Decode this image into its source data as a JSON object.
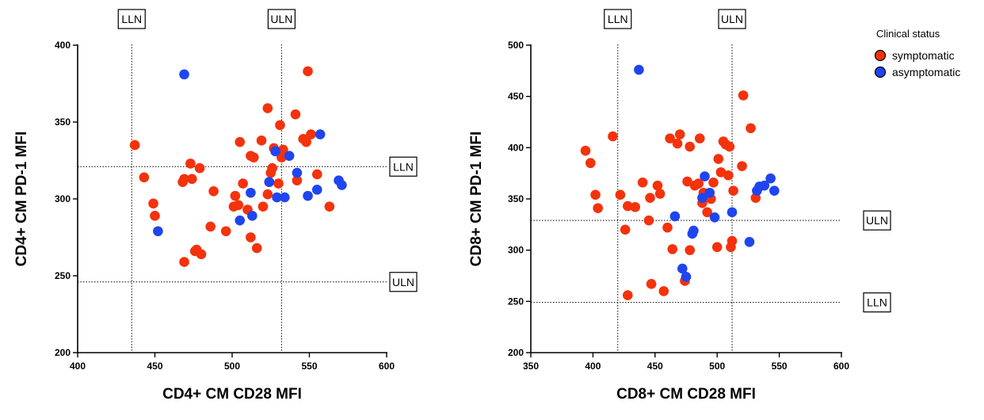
{
  "colors": {
    "symptomatic": "#f4320b",
    "asymptomatic": "#1f45f0",
    "dot_stroke": "#000000"
  },
  "legend": {
    "title": "Clinical status",
    "items": [
      {
        "label": "symptomatic",
        "color": "#f4320b"
      },
      {
        "label": "asymptomatic",
        "color": "#1f45f0"
      }
    ]
  },
  "chart_data": [
    {
      "type": "scatter",
      "xlabel": "CD4+ CM CD28 MFI",
      "ylabel": "CD4+ CM PD-1 MFI",
      "xlim": [
        400,
        600
      ],
      "ylim": [
        200,
        400
      ],
      "xticks": [
        400,
        450,
        500,
        550,
        600
      ],
      "yticks": [
        200,
        250,
        300,
        350,
        400
      ],
      "grid": false,
      "vlines": [
        {
          "x": 435,
          "label": "LLN"
        },
        {
          "x": 532,
          "label": "ULN"
        }
      ],
      "hlines": [
        {
          "y": 321,
          "label": "LLN"
        },
        {
          "y": 246,
          "label": "ULN"
        }
      ],
      "series": [
        {
          "key": "symptomatic",
          "points": [
            [
              437,
              335
            ],
            [
              443,
              314
            ],
            [
              449,
              297
            ],
            [
              450,
              289
            ],
            [
              468,
              311
            ],
            [
              469,
              313
            ],
            [
              469,
              259
            ],
            [
              473,
              323
            ],
            [
              474,
              313
            ],
            [
              476,
              266
            ],
            [
              477,
              267
            ],
            [
              479,
              320
            ],
            [
              480,
              264
            ],
            [
              486,
              282
            ],
            [
              488,
              305
            ],
            [
              496,
              279
            ],
            [
              501,
              295
            ],
            [
              502,
              302
            ],
            [
              504,
              296
            ],
            [
              505,
              337
            ],
            [
              507,
              310
            ],
            [
              510,
              293
            ],
            [
              512,
              275
            ],
            [
              512,
              328
            ],
            [
              514,
              327
            ],
            [
              516,
              268
            ],
            [
              519,
              338
            ],
            [
              520,
              295
            ],
            [
              523,
              303
            ],
            [
              523,
              359
            ],
            [
              524,
              311
            ],
            [
              525,
              317
            ],
            [
              526,
              320
            ],
            [
              527,
              333
            ],
            [
              528,
              331
            ],
            [
              530,
              310
            ],
            [
              531,
              348
            ],
            [
              532,
              327
            ],
            [
              533,
              332
            ],
            [
              541,
              355
            ],
            [
              542,
              312
            ],
            [
              546,
              339
            ],
            [
              548,
              337
            ],
            [
              549,
              383
            ],
            [
              551,
              342
            ],
            [
              555,
              316
            ],
            [
              563,
              295
            ]
          ]
        },
        {
          "key": "asymptomatic",
          "points": [
            [
              452,
              279
            ],
            [
              469,
              381
            ],
            [
              505,
              286
            ],
            [
              512,
              304
            ],
            [
              513,
              289
            ],
            [
              524,
              311
            ],
            [
              528,
              331
            ],
            [
              529,
              301
            ],
            [
              534,
              301
            ],
            [
              537,
              328
            ],
            [
              542,
              317
            ],
            [
              549,
              302
            ],
            [
              555,
              306
            ],
            [
              557,
              342
            ],
            [
              569,
              312
            ],
            [
              571,
              309
            ]
          ]
        }
      ]
    },
    {
      "type": "scatter",
      "xlabel": "CD8+ CM CD28 MFI",
      "ylabel": "CD8+ CM PD-1 MFI",
      "xlim": [
        350,
        600
      ],
      "ylim": [
        200,
        500
      ],
      "xticks": [
        350,
        400,
        450,
        500,
        550,
        600
      ],
      "yticks": [
        200,
        250,
        300,
        350,
        400,
        450,
        500
      ],
      "grid": false,
      "vlines": [
        {
          "x": 420,
          "label": "LLN"
        },
        {
          "x": 512,
          "label": "ULN"
        }
      ],
      "hlines": [
        {
          "y": 329,
          "label": "ULN"
        },
        {
          "y": 249,
          "label": "LLN"
        }
      ],
      "series": [
        {
          "key": "symptomatic",
          "points": [
            [
              394,
              397
            ],
            [
              398,
              385
            ],
            [
              402,
              354
            ],
            [
              404,
              341
            ],
            [
              416,
              411
            ],
            [
              422,
              354
            ],
            [
              426,
              320
            ],
            [
              428,
              256
            ],
            [
              428,
              343
            ],
            [
              434,
              342
            ],
            [
              440,
              366
            ],
            [
              445,
              329
            ],
            [
              446,
              351
            ],
            [
              447,
              267
            ],
            [
              452,
              363
            ],
            [
              454,
              355
            ],
            [
              457,
              260
            ],
            [
              460,
              322
            ],
            [
              462,
              409
            ],
            [
              464,
              301
            ],
            [
              468,
              404
            ],
            [
              470,
              413
            ],
            [
              474,
              270
            ],
            [
              476,
              367
            ],
            [
              478,
              300
            ],
            [
              478,
              401
            ],
            [
              482,
              363
            ],
            [
              485,
              365
            ],
            [
              486,
              409
            ],
            [
              488,
              346
            ],
            [
              489,
              356
            ],
            [
              492,
              337
            ],
            [
              495,
              350
            ],
            [
              497,
              366
            ],
            [
              500,
              303
            ],
            [
              501,
              389
            ],
            [
              503,
              376
            ],
            [
              505,
              406
            ],
            [
              507,
              403
            ],
            [
              509,
              373
            ],
            [
              510,
              401
            ],
            [
              511,
              303
            ],
            [
              512,
              309
            ],
            [
              513,
              358
            ],
            [
              520,
              382
            ],
            [
              521,
              451
            ],
            [
              527,
              419
            ],
            [
              531,
              351
            ]
          ]
        },
        {
          "key": "asymptomatic",
          "points": [
            [
              437,
              476
            ],
            [
              466,
              333
            ],
            [
              472,
              282
            ],
            [
              475,
              274
            ],
            [
              480,
              316
            ],
            [
              481,
              319
            ],
            [
              488,
              351
            ],
            [
              490,
              372
            ],
            [
              494,
              356
            ],
            [
              498,
              332
            ],
            [
              512,
              337
            ],
            [
              526,
              308
            ],
            [
              532,
              358
            ],
            [
              534,
              362
            ],
            [
              538,
              363
            ],
            [
              543,
              370
            ],
            [
              546,
              358
            ]
          ]
        }
      ]
    }
  ]
}
